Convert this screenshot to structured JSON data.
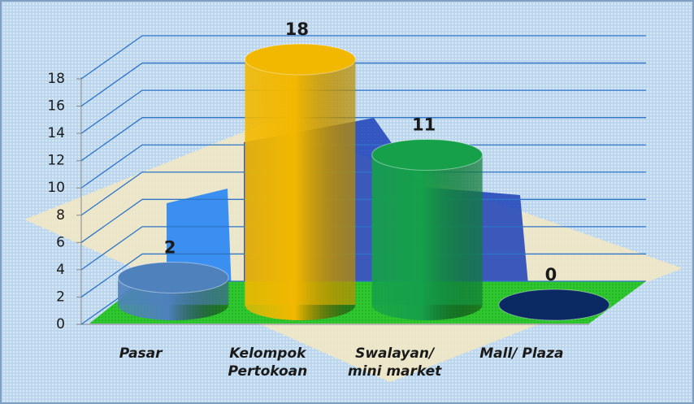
{
  "chart_data": {
    "type": "bar",
    "categories": [
      "Pasar",
      "Kelompok\nPertokoan",
      "Swalayan/\nmini market",
      "Mall/ Plaza"
    ],
    "values": [
      2,
      18,
      11,
      0
    ],
    "colors": [
      "#4f81bd",
      "#f2b800",
      "#16a04a",
      "#0b2a63"
    ],
    "ylim": [
      0,
      18
    ],
    "yticks": [
      0,
      2,
      4,
      6,
      8,
      10,
      12,
      14,
      16,
      18
    ],
    "grid": true
  }
}
